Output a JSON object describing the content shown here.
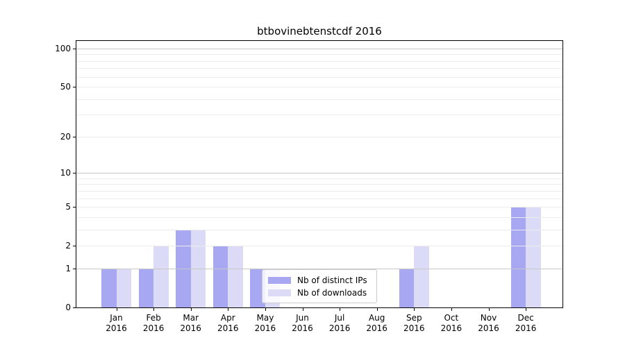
{
  "chart_data": {
    "type": "bar",
    "title": "btbovinebtenstcdf 2016",
    "categories": [
      "Jan",
      "Feb",
      "Mar",
      "Apr",
      "May",
      "Jun",
      "Jul",
      "Aug",
      "Sep",
      "Oct",
      "Nov",
      "Dec"
    ],
    "year": "2016",
    "series": [
      {
        "name": "Nb of distinct IPs",
        "color": "#a8a8f2",
        "values": [
          1,
          1,
          3,
          2,
          1,
          0,
          0,
          0,
          1,
          0,
          0,
          5
        ]
      },
      {
        "name": "Nb of downloads",
        "color": "#dbdbf8",
        "values": [
          1,
          2,
          3,
          2,
          1,
          0,
          0,
          0,
          2,
          0,
          0,
          5
        ]
      }
    ],
    "yscale": "log1p",
    "ylim": [
      0,
      100
    ],
    "y_ticks": [
      0,
      1,
      2,
      5,
      10,
      20,
      50,
      100
    ],
    "y_major_gridlines": [
      1,
      10,
      100
    ],
    "y_minor_gridlines": [
      2,
      3,
      4,
      5,
      6,
      7,
      8,
      9,
      20,
      30,
      40,
      50,
      60,
      70,
      80,
      90
    ],
    "grid": true,
    "legend": {
      "position": "lower center",
      "entries": [
        "Nb of distinct IPs",
        "Nb of downloads"
      ]
    }
  },
  "colors": {
    "bar_distinct_ips": "#a8a8f2",
    "bar_downloads": "#dbdbf8",
    "grid_major": "#c8c8c8",
    "grid_minor": "#ececec",
    "axis": "#000000",
    "legend_border": "#cccccc"
  }
}
